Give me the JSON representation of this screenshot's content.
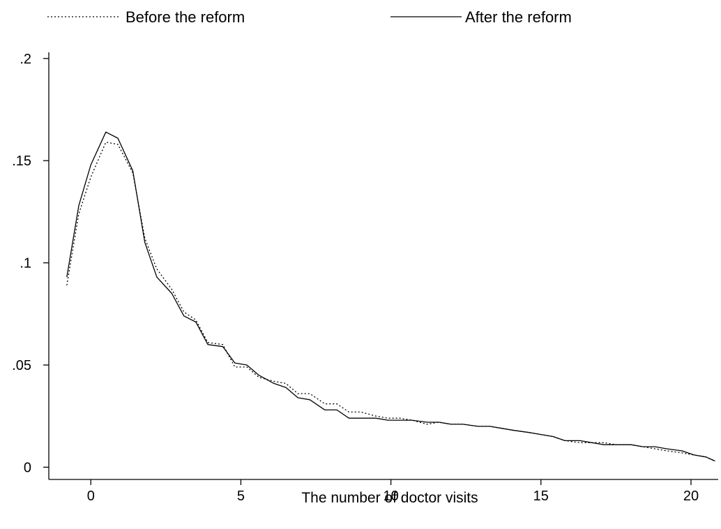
{
  "chart_data": {
    "type": "line",
    "xlabel": "The number of doctor visits",
    "ylabel": "",
    "title": "",
    "xlim": [
      -1.4,
      21
    ],
    "ylim": [
      -0.006,
      0.203
    ],
    "xticks": [
      0,
      5,
      10,
      15,
      20
    ],
    "xtick_labels": [
      "0",
      "5",
      "10",
      "15",
      "20"
    ],
    "yticks": [
      0,
      0.05,
      0.1,
      0.15,
      0.2
    ],
    "ytick_labels": [
      "0",
      ".05",
      ".1",
      ".15",
      ".2"
    ],
    "grid": false,
    "legend_position": "top",
    "series": [
      {
        "name": "Before the reform",
        "style": "dotted",
        "color": "#000000",
        "x": [
          -0.8,
          -0.4,
          0.0,
          0.5,
          0.9,
          1.4,
          1.8,
          2.2,
          2.7,
          3.1,
          3.5,
          3.9,
          4.4,
          4.8,
          5.2,
          5.6,
          6.1,
          6.5,
          6.9,
          7.3,
          7.8,
          8.2,
          8.6,
          9.0,
          9.5,
          9.9,
          10.3,
          10.7,
          11.2,
          11.6,
          12.0,
          12.4,
          12.9,
          13.3,
          13.7,
          14.1,
          14.6,
          15.0,
          15.4,
          15.8,
          16.3,
          16.7,
          17.1,
          17.5,
          18.0,
          18.4,
          18.8,
          19.2,
          19.7,
          20.1,
          20.5,
          20.8
        ],
        "y": [
          0.089,
          0.124,
          0.142,
          0.159,
          0.158,
          0.144,
          0.112,
          0.097,
          0.087,
          0.076,
          0.072,
          0.061,
          0.06,
          0.049,
          0.049,
          0.044,
          0.042,
          0.041,
          0.036,
          0.036,
          0.031,
          0.031,
          0.027,
          0.027,
          0.025,
          0.024,
          0.024,
          0.023,
          0.021,
          0.022,
          0.021,
          0.021,
          0.02,
          0.02,
          0.019,
          0.018,
          0.017,
          0.016,
          0.015,
          0.013,
          0.012,
          0.012,
          0.012,
          0.011,
          0.011,
          0.01,
          0.009,
          0.008,
          0.007,
          0.006,
          0.005,
          0.003
        ]
      },
      {
        "name": "After the reform",
        "style": "solid",
        "color": "#000000",
        "x": [
          -0.8,
          -0.4,
          0.0,
          0.5,
          0.9,
          1.4,
          1.8,
          2.2,
          2.7,
          3.1,
          3.5,
          3.9,
          4.4,
          4.8,
          5.2,
          5.6,
          6.1,
          6.5,
          6.9,
          7.3,
          7.8,
          8.2,
          8.6,
          9.0,
          9.5,
          9.9,
          10.3,
          10.7,
          11.2,
          11.6,
          12.0,
          12.4,
          12.9,
          13.3,
          13.7,
          14.1,
          14.6,
          15.0,
          15.4,
          15.8,
          16.3,
          16.7,
          17.1,
          17.5,
          18.0,
          18.4,
          18.8,
          19.2,
          19.7,
          20.1,
          20.5,
          20.8
        ],
        "y": [
          0.093,
          0.128,
          0.148,
          0.164,
          0.161,
          0.145,
          0.11,
          0.093,
          0.085,
          0.074,
          0.071,
          0.06,
          0.059,
          0.051,
          0.05,
          0.045,
          0.041,
          0.039,
          0.034,
          0.033,
          0.028,
          0.028,
          0.024,
          0.024,
          0.024,
          0.023,
          0.023,
          0.023,
          0.022,
          0.022,
          0.021,
          0.021,
          0.02,
          0.02,
          0.019,
          0.018,
          0.017,
          0.016,
          0.015,
          0.013,
          0.013,
          0.012,
          0.011,
          0.011,
          0.011,
          0.01,
          0.01,
          0.009,
          0.008,
          0.006,
          0.005,
          0.003
        ]
      }
    ]
  }
}
